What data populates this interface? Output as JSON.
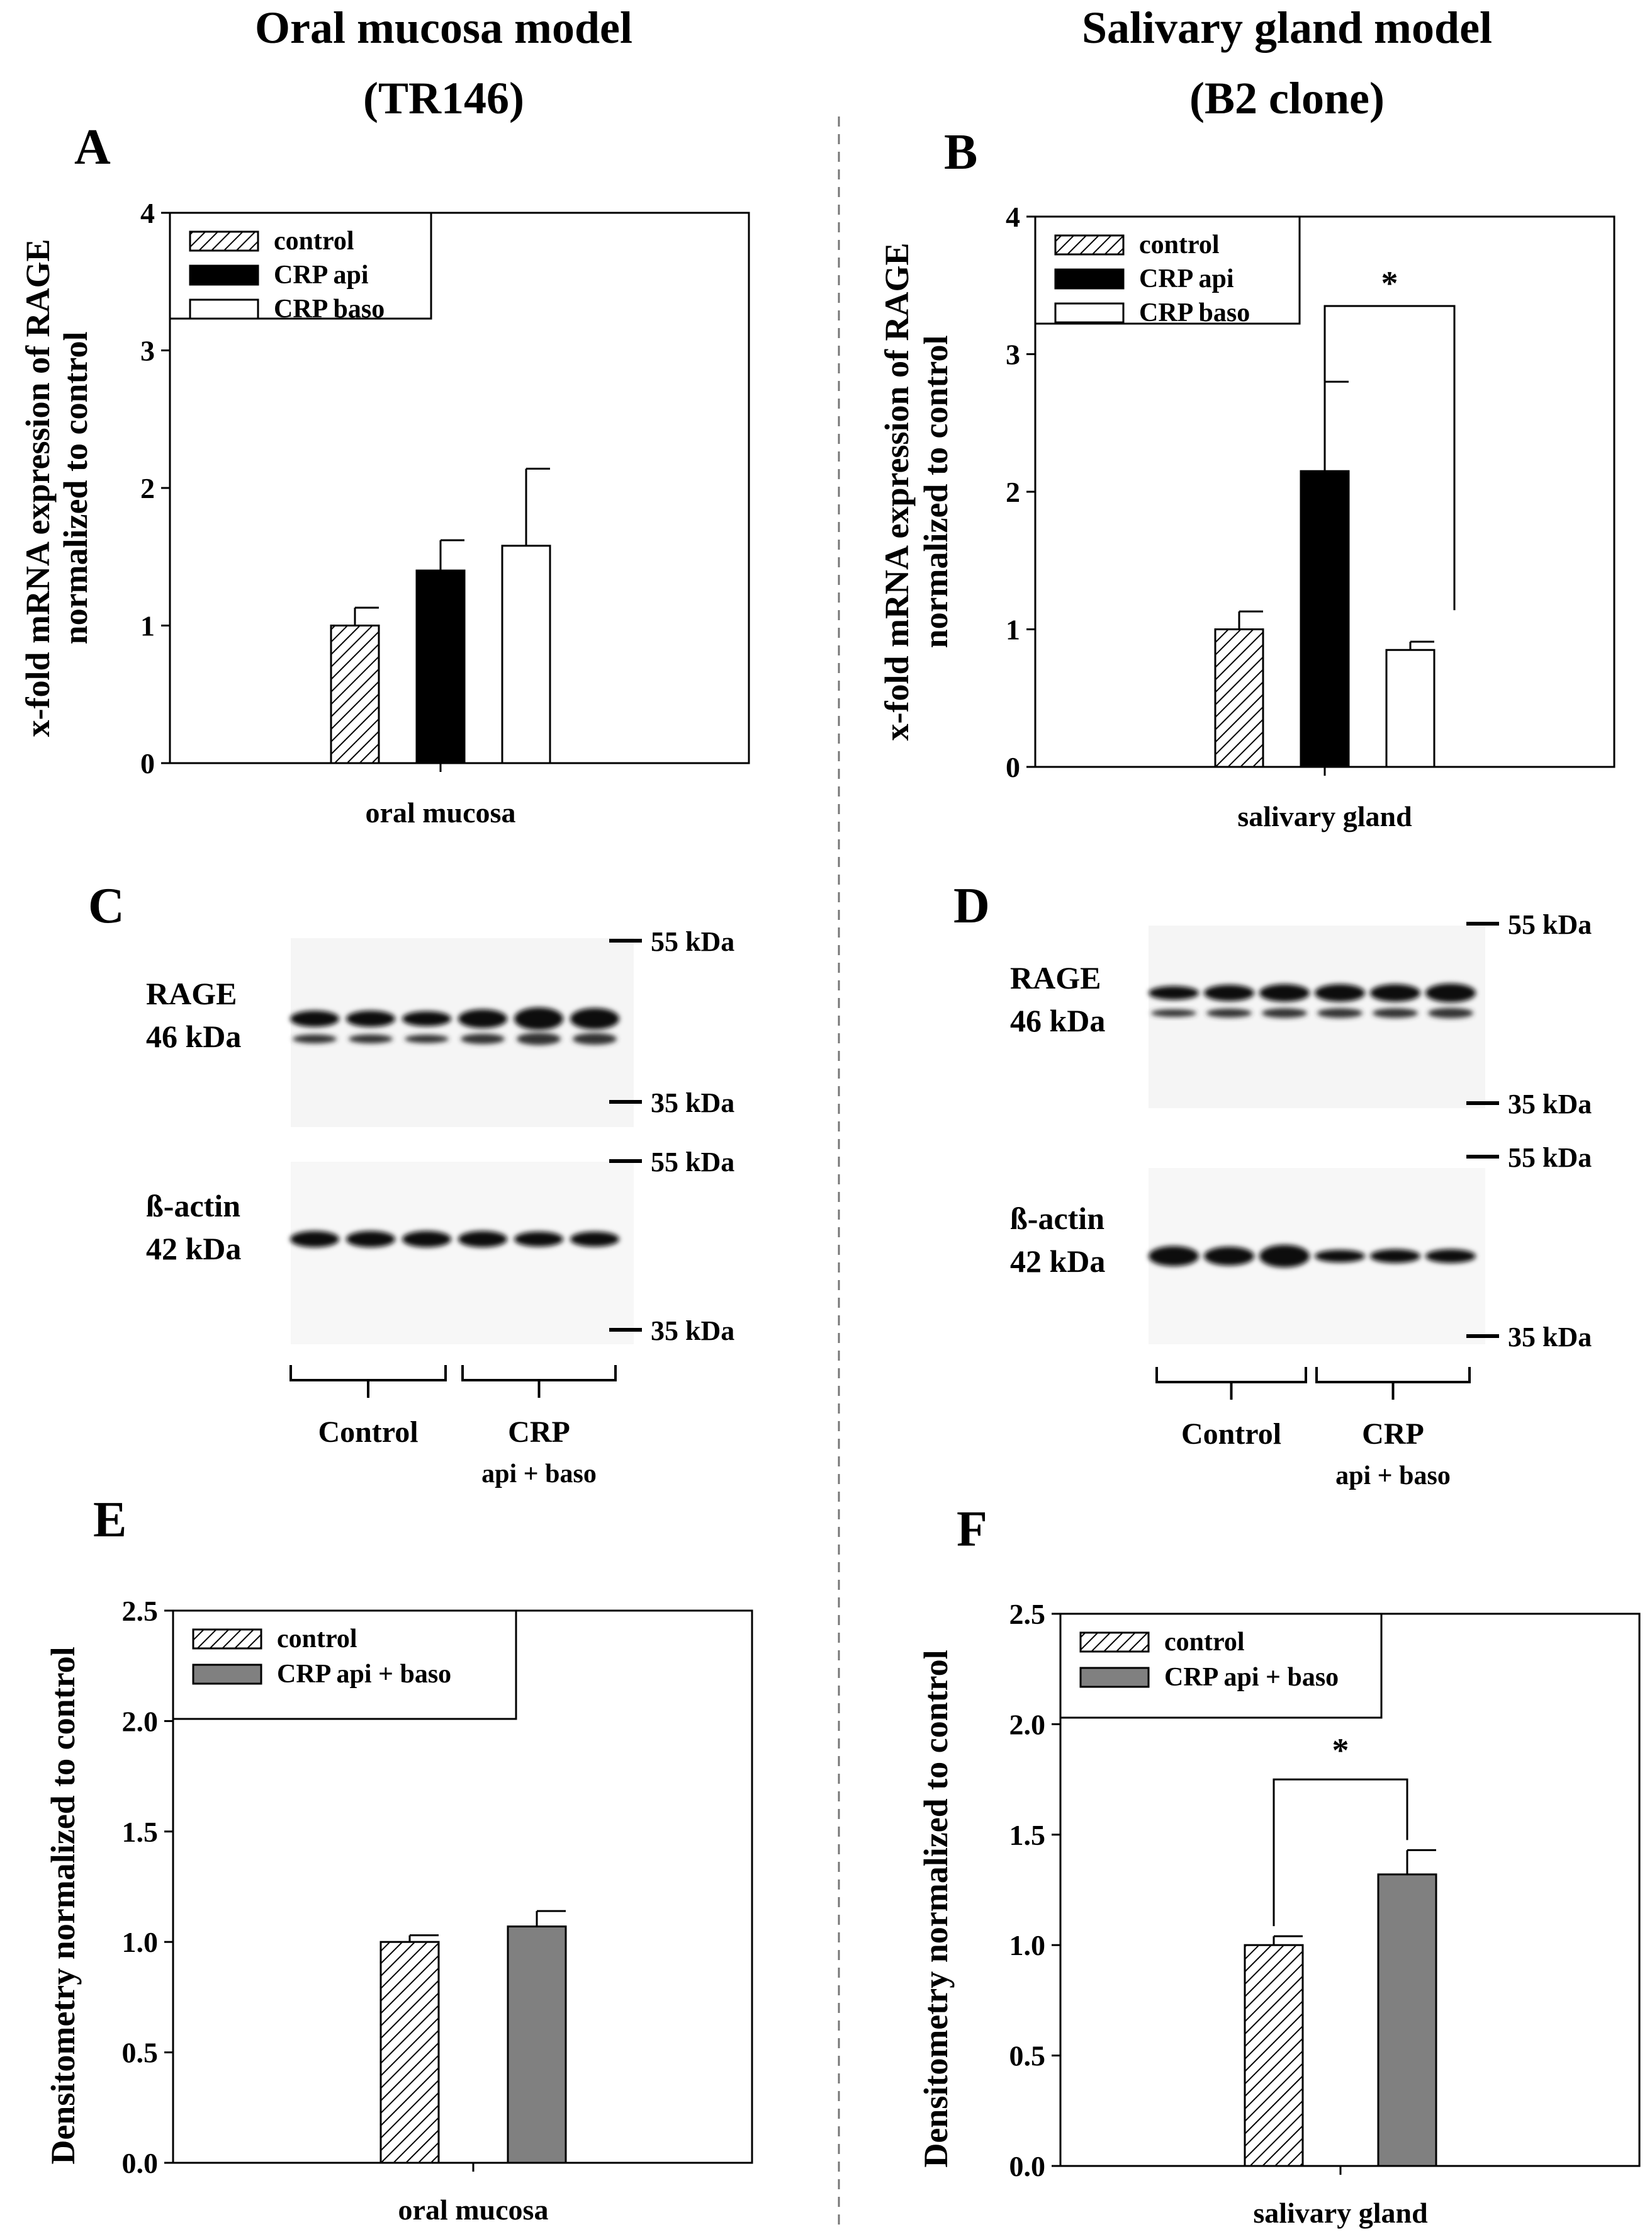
{
  "colors": {
    "control": "#ffffff",
    "api": "#000000",
    "baso": "#ffffff",
    "combined": "#808080",
    "hatch": "#000000"
  },
  "columns": {
    "left_title_line1": "Oral mucosa model",
    "left_title_line2": "(TR146)",
    "right_title_line1": "Salivary gland model",
    "right_title_line2": "(B2 clone)"
  },
  "chart_data": [
    {
      "panel": "A",
      "type": "bar",
      "ylabel_line1": "x-fold mRNA expression of RAGE",
      "ylabel_line2": "normalized to control",
      "xlabel": "oral mucosa",
      "ylim": [
        0,
        4
      ],
      "yticks": [
        "0",
        "1",
        "2",
        "3",
        "4"
      ],
      "legend": [
        "control",
        "CRP api",
        "CRP baso"
      ],
      "legend_position": "top-left",
      "series": [
        {
          "name": "control",
          "value": 1.0,
          "error": 0.13
        },
        {
          "name": "CRP api",
          "value": 1.4,
          "error": 0.22
        },
        {
          "name": "CRP baso",
          "value": 1.58,
          "error": 0.56
        }
      ]
    },
    {
      "panel": "B",
      "type": "bar",
      "ylabel_line1": "x-fold mRNA expression of RAGE",
      "ylabel_line2": "normalized to control",
      "xlabel": "salivary gland",
      "ylim": [
        0,
        4
      ],
      "yticks": [
        "0",
        "1",
        "2",
        "3",
        "4"
      ],
      "legend": [
        "control",
        "CRP api",
        "CRP baso"
      ],
      "legend_position": "top-left",
      "series": [
        {
          "name": "control",
          "value": 1.0,
          "error": 0.13
        },
        {
          "name": "CRP api",
          "value": 2.15,
          "error": 0.65
        },
        {
          "name": "CRP baso",
          "value": 0.85,
          "error": 0.06
        }
      ],
      "significance": "*"
    },
    {
      "panel": "E",
      "type": "bar",
      "ylabel": "Densitometry normalized to control",
      "xlabel": "oral mucosa",
      "ylim": [
        0,
        2.5
      ],
      "yticks": [
        "0.0",
        "0.5",
        "1.0",
        "1.5",
        "2.0",
        "2.5"
      ],
      "legend": [
        "control",
        "CRP api + baso"
      ],
      "legend_position": "top-left",
      "series": [
        {
          "name": "control",
          "value": 1.0,
          "error": 0.03
        },
        {
          "name": "CRP api + baso",
          "value": 1.07,
          "error": 0.07
        }
      ]
    },
    {
      "panel": "F",
      "type": "bar",
      "ylabel": "Densitometry normalized to control",
      "xlabel": "salivary gland",
      "ylim": [
        0,
        2.5
      ],
      "yticks": [
        "0.0",
        "0.5",
        "1.0",
        "1.5",
        "2.0",
        "2.5"
      ],
      "legend": [
        "control",
        "CRP api + baso"
      ],
      "legend_position": "top-left",
      "series": [
        {
          "name": "control",
          "value": 1.0,
          "error": 0.04
        },
        {
          "name": "CRP api + baso",
          "value": 1.32,
          "error": 0.11
        }
      ],
      "significance": "*"
    }
  ],
  "blots": {
    "C": {
      "letter": "C",
      "rage_label": "RAGE",
      "rage_kda": "46 kDa",
      "actin_label": "ß-actin",
      "actin_kda": "42 kDa",
      "markers": [
        "55 kDa",
        "35 kDa",
        "55 kDa",
        "35 kDa"
      ],
      "group1": "Control",
      "group2": "CRP",
      "group2_sub": "api + baso"
    },
    "D": {
      "letter": "D",
      "rage_label": "RAGE",
      "rage_kda": "46 kDa",
      "actin_label": "ß-actin",
      "actin_kda": "42 kDa",
      "markers": [
        "55 kDa",
        "35 kDa",
        "55 kDa",
        "35 kDa"
      ],
      "group1": "Control",
      "group2": "CRP",
      "group2_sub": "api + baso"
    }
  },
  "panel_letters": {
    "A": "A",
    "B": "B",
    "E": "E",
    "F": "F"
  }
}
